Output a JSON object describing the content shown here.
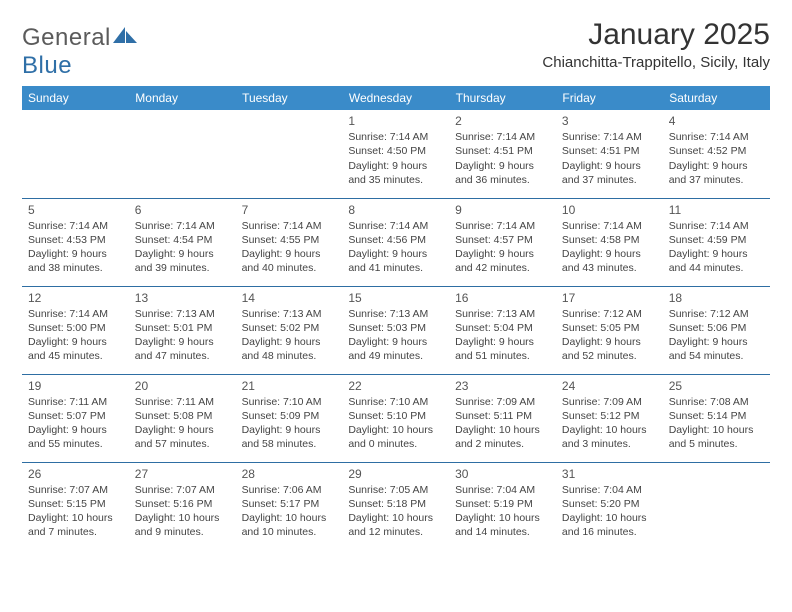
{
  "brand": {
    "name_a": "General",
    "name_b": "Blue"
  },
  "title": "January 2025",
  "location": "Chianchitta-Trappitello, Sicily, Italy",
  "colors": {
    "header_bg": "#3a8bc9",
    "header_text": "#ffffff",
    "rule": "#2e6ea3",
    "text": "#444444",
    "brand_gray": "#5b5b5b",
    "brand_blue": "#2f6fa7"
  },
  "weekdays": [
    "Sunday",
    "Monday",
    "Tuesday",
    "Wednesday",
    "Thursday",
    "Friday",
    "Saturday"
  ],
  "weeks": [
    [
      null,
      null,
      null,
      {
        "d": "1",
        "sr": "7:14 AM",
        "ss": "4:50 PM",
        "dl": "9 hours and 35 minutes."
      },
      {
        "d": "2",
        "sr": "7:14 AM",
        "ss": "4:51 PM",
        "dl": "9 hours and 36 minutes."
      },
      {
        "d": "3",
        "sr": "7:14 AM",
        "ss": "4:51 PM",
        "dl": "9 hours and 37 minutes."
      },
      {
        "d": "4",
        "sr": "7:14 AM",
        "ss": "4:52 PM",
        "dl": "9 hours and 37 minutes."
      }
    ],
    [
      {
        "d": "5",
        "sr": "7:14 AM",
        "ss": "4:53 PM",
        "dl": "9 hours and 38 minutes."
      },
      {
        "d": "6",
        "sr": "7:14 AM",
        "ss": "4:54 PM",
        "dl": "9 hours and 39 minutes."
      },
      {
        "d": "7",
        "sr": "7:14 AM",
        "ss": "4:55 PM",
        "dl": "9 hours and 40 minutes."
      },
      {
        "d": "8",
        "sr": "7:14 AM",
        "ss": "4:56 PM",
        "dl": "9 hours and 41 minutes."
      },
      {
        "d": "9",
        "sr": "7:14 AM",
        "ss": "4:57 PM",
        "dl": "9 hours and 42 minutes."
      },
      {
        "d": "10",
        "sr": "7:14 AM",
        "ss": "4:58 PM",
        "dl": "9 hours and 43 minutes."
      },
      {
        "d": "11",
        "sr": "7:14 AM",
        "ss": "4:59 PM",
        "dl": "9 hours and 44 minutes."
      }
    ],
    [
      {
        "d": "12",
        "sr": "7:14 AM",
        "ss": "5:00 PM",
        "dl": "9 hours and 45 minutes."
      },
      {
        "d": "13",
        "sr": "7:13 AM",
        "ss": "5:01 PM",
        "dl": "9 hours and 47 minutes."
      },
      {
        "d": "14",
        "sr": "7:13 AM",
        "ss": "5:02 PM",
        "dl": "9 hours and 48 minutes."
      },
      {
        "d": "15",
        "sr": "7:13 AM",
        "ss": "5:03 PM",
        "dl": "9 hours and 49 minutes."
      },
      {
        "d": "16",
        "sr": "7:13 AM",
        "ss": "5:04 PM",
        "dl": "9 hours and 51 minutes."
      },
      {
        "d": "17",
        "sr": "7:12 AM",
        "ss": "5:05 PM",
        "dl": "9 hours and 52 minutes."
      },
      {
        "d": "18",
        "sr": "7:12 AM",
        "ss": "5:06 PM",
        "dl": "9 hours and 54 minutes."
      }
    ],
    [
      {
        "d": "19",
        "sr": "7:11 AM",
        "ss": "5:07 PM",
        "dl": "9 hours and 55 minutes."
      },
      {
        "d": "20",
        "sr": "7:11 AM",
        "ss": "5:08 PM",
        "dl": "9 hours and 57 minutes."
      },
      {
        "d": "21",
        "sr": "7:10 AM",
        "ss": "5:09 PM",
        "dl": "9 hours and 58 minutes."
      },
      {
        "d": "22",
        "sr": "7:10 AM",
        "ss": "5:10 PM",
        "dl": "10 hours and 0 minutes."
      },
      {
        "d": "23",
        "sr": "7:09 AM",
        "ss": "5:11 PM",
        "dl": "10 hours and 2 minutes."
      },
      {
        "d": "24",
        "sr": "7:09 AM",
        "ss": "5:12 PM",
        "dl": "10 hours and 3 minutes."
      },
      {
        "d": "25",
        "sr": "7:08 AM",
        "ss": "5:14 PM",
        "dl": "10 hours and 5 minutes."
      }
    ],
    [
      {
        "d": "26",
        "sr": "7:07 AM",
        "ss": "5:15 PM",
        "dl": "10 hours and 7 minutes."
      },
      {
        "d": "27",
        "sr": "7:07 AM",
        "ss": "5:16 PM",
        "dl": "10 hours and 9 minutes."
      },
      {
        "d": "28",
        "sr": "7:06 AM",
        "ss": "5:17 PM",
        "dl": "10 hours and 10 minutes."
      },
      {
        "d": "29",
        "sr": "7:05 AM",
        "ss": "5:18 PM",
        "dl": "10 hours and 12 minutes."
      },
      {
        "d": "30",
        "sr": "7:04 AM",
        "ss": "5:19 PM",
        "dl": "10 hours and 14 minutes."
      },
      {
        "d": "31",
        "sr": "7:04 AM",
        "ss": "5:20 PM",
        "dl": "10 hours and 16 minutes."
      },
      null
    ]
  ],
  "labels": {
    "sunrise": "Sunrise:",
    "sunset": "Sunset:",
    "daylight": "Daylight:"
  }
}
